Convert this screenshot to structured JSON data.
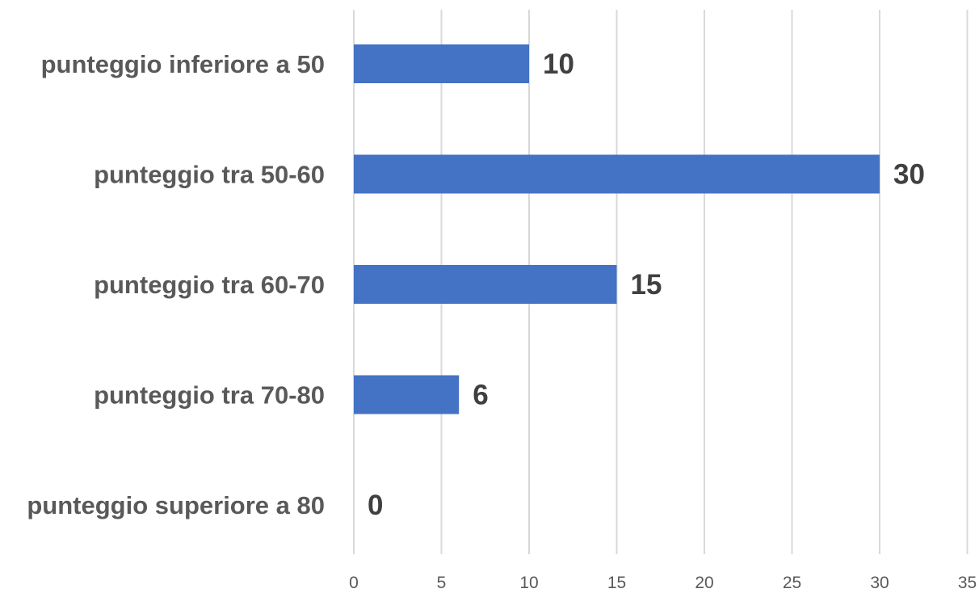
{
  "chart_data": {
    "type": "bar",
    "orientation": "horizontal",
    "categories": [
      "punteggio inferiore a 50",
      "punteggio tra 50-60",
      "punteggio tra 60-70",
      "punteggio tra 70-80",
      "punteggio superiore a 80"
    ],
    "values": [
      10,
      30,
      15,
      6,
      0
    ],
    "x_ticks": [
      0,
      5,
      10,
      15,
      20,
      25,
      30,
      35
    ],
    "xlim": [
      0,
      35
    ],
    "grid": "vertical",
    "legend": "none",
    "data_labels": true,
    "bar_color": "#4472c4"
  }
}
